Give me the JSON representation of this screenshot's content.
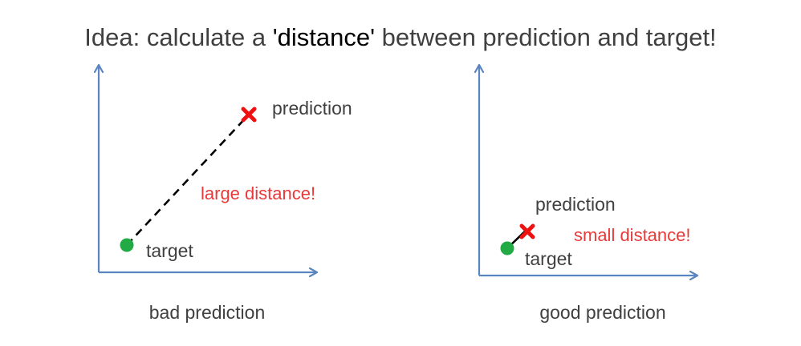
{
  "title": {
    "before": "Idea: calculate a ",
    "emphasis": "'distance'",
    "after": " between prediction and target!"
  },
  "left_panel": {
    "prediction_label": "prediction",
    "target_label": "target",
    "distance_label": "large distance!",
    "caption": "bad prediction"
  },
  "right_panel": {
    "prediction_label": "prediction",
    "target_label": "target",
    "distance_label": "small distance!",
    "caption": "good prediction"
  },
  "colors": {
    "axis": "#5b85c0",
    "target": "#22aa44",
    "prediction": "#ee1111",
    "distance_text": "#e83a3a",
    "connector": "#000000"
  },
  "icons": {
    "target": "green-dot-icon",
    "prediction": "red-cross-icon"
  }
}
